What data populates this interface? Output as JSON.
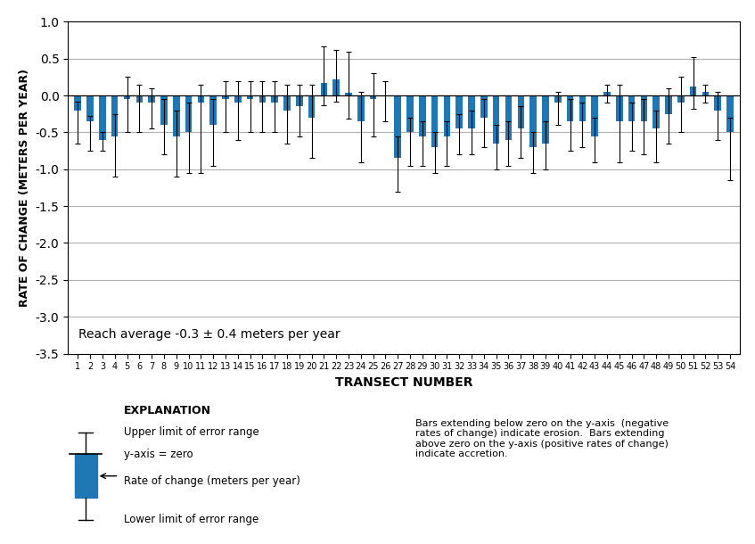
{
  "chart_data": {
    "type": "bar",
    "categories": [
      "1",
      "2",
      "3",
      "4",
      "5",
      "6",
      "7",
      "8",
      "9",
      "10",
      "11",
      "12",
      "13",
      "14",
      "15",
      "16",
      "17",
      "18",
      "19",
      "20",
      "21",
      "22",
      "23",
      "24",
      "25",
      "26",
      "27",
      "28",
      "29",
      "30",
      "31",
      "32",
      "33",
      "34",
      "35",
      "36",
      "37",
      "38",
      "39",
      "40",
      "41",
      "42",
      "43",
      "44",
      "45",
      "46",
      "47",
      "48",
      "49",
      "50",
      "51",
      "52",
      "53",
      "54"
    ],
    "values": [
      -0.2,
      -0.35,
      -0.6,
      -0.55,
      -0.05,
      -0.1,
      -0.1,
      -0.4,
      -0.55,
      -0.5,
      -0.1,
      -0.4,
      -0.05,
      -0.1,
      -0.05,
      -0.1,
      -0.1,
      -0.2,
      -0.15,
      -0.3,
      0.17,
      0.22,
      0.04,
      -0.35,
      -0.05,
      0.0,
      -0.85,
      -0.5,
      -0.55,
      -0.7,
      -0.55,
      -0.45,
      -0.45,
      -0.3,
      -0.65,
      -0.6,
      -0.45,
      -0.7,
      -0.65,
      -0.1,
      -0.35,
      -0.35,
      -0.55,
      0.05,
      -0.35,
      -0.35,
      -0.35,
      -0.45,
      -0.25,
      -0.1,
      0.12,
      0.05,
      -0.2,
      -0.5
    ],
    "error_upper": [
      0.12,
      0.07,
      0.1,
      0.3,
      0.3,
      0.25,
      0.2,
      0.35,
      0.35,
      0.4,
      0.25,
      0.35,
      0.25,
      0.3,
      0.25,
      0.3,
      0.3,
      0.35,
      0.3,
      0.45,
      0.5,
      0.4,
      0.55,
      0.4,
      0.35,
      0.2,
      0.3,
      0.2,
      0.2,
      0.2,
      0.2,
      0.2,
      0.25,
      0.25,
      0.25,
      0.25,
      0.3,
      0.2,
      0.3,
      0.15,
      0.3,
      0.25,
      0.25,
      0.1,
      0.5,
      0.25,
      0.3,
      0.25,
      0.35,
      0.35,
      0.4,
      0.1,
      0.25,
      0.2
    ],
    "error_lower": [
      0.45,
      0.4,
      0.15,
      0.55,
      0.45,
      0.4,
      0.35,
      0.4,
      0.55,
      0.55,
      0.95,
      0.55,
      0.45,
      0.5,
      0.45,
      0.4,
      0.4,
      0.45,
      0.4,
      0.55,
      0.3,
      0.3,
      0.35,
      0.55,
      0.5,
      0.35,
      0.45,
      0.45,
      0.4,
      0.35,
      0.4,
      0.35,
      0.35,
      0.4,
      0.35,
      0.35,
      0.4,
      0.35,
      0.35,
      0.3,
      0.4,
      0.35,
      0.35,
      0.15,
      0.55,
      0.4,
      0.45,
      0.45,
      0.4,
      0.4,
      0.3,
      0.15,
      0.4,
      0.65
    ],
    "color": "#1f77b4",
    "xlabel": "TRANSECT NUMBER",
    "ylabel": "RATE OF CHANGE (METERS PER YEAR)",
    "ylim": [
      -3.5,
      1.0
    ],
    "yticks": [
      {
        "value": 1.0,
        "label": "1.0"
      },
      0.5,
      {
        "value": 0.0,
        "label": "0.0"
      },
      -0.5,
      {
        "value": -1.0,
        "label": "-1.0"
      },
      -1.5,
      {
        "value": -2.0,
        "label": "-2.0"
      },
      -2.5,
      {
        "value": -3.0,
        "label": "-3.0"
      },
      -3.5
    ],
    "grid": true,
    "annotations": [
      "Reach average -0.3 ± 0.4 meters per year",
      "EXPLANATION",
      "Upper limit of error range",
      "y-axis = zero",
      "Rate of change (meters per year)",
      "Lower limit of error range",
      "Bars extending below zero on the y-axis  (negative\nrates of change) indicate erosion.  Bars extending\nabove zero on the y-axis (positive rates of change)\nindicate accretion."
    ]
  }
}
